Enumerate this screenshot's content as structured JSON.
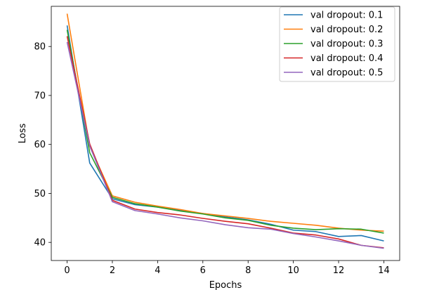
{
  "chart_data": {
    "type": "line",
    "title": "",
    "xlabel": "Epochs",
    "ylabel": "Loss",
    "xlim": [
      -0.7,
      14.7
    ],
    "ylim": [
      36.3,
      88.2
    ],
    "xticks": [
      0,
      2,
      4,
      6,
      8,
      10,
      12,
      14
    ],
    "yticks": [
      40,
      50,
      60,
      70,
      80
    ],
    "grid": false,
    "legend_position": "top-right",
    "x": [
      0,
      1,
      2,
      3,
      4,
      5,
      6,
      7,
      8,
      9,
      10,
      11,
      12,
      13,
      14
    ],
    "series": [
      {
        "name": "val dropout: 0.1",
        "color": "#1f77b4",
        "values": [
          84.3,
          56.2,
          48.9,
          47.7,
          47.2,
          46.5,
          45.9,
          45.2,
          44.6,
          43.7,
          42.5,
          42.2,
          41.2,
          41.4,
          40.3
        ]
      },
      {
        "name": "val dropout: 0.2",
        "color": "#ff7f0e",
        "values": [
          86.7,
          59.6,
          49.5,
          48.2,
          47.4,
          46.7,
          45.9,
          45.4,
          44.9,
          44.3,
          43.9,
          43.5,
          42.9,
          42.5,
          42.3
        ]
      },
      {
        "name": "val dropout: 0.3",
        "color": "#2ca02c",
        "values": [
          83.4,
          58.3,
          49.2,
          47.9,
          47.2,
          46.4,
          45.8,
          45.0,
          44.5,
          43.5,
          42.9,
          42.6,
          42.8,
          42.7,
          41.9
        ]
      },
      {
        "name": "val dropout: 0.4",
        "color": "#d62728",
        "values": [
          82.1,
          60.1,
          48.6,
          46.8,
          46.1,
          45.6,
          44.9,
          44.3,
          43.8,
          42.9,
          41.9,
          41.5,
          40.7,
          39.4,
          38.9
        ]
      },
      {
        "name": "val dropout: 0.5",
        "color": "#9467bd",
        "values": [
          80.9,
          59.7,
          48.3,
          46.5,
          45.8,
          45.0,
          44.4,
          43.6,
          43.0,
          42.7,
          41.8,
          41.1,
          40.3,
          39.4,
          38.8
        ]
      }
    ]
  }
}
